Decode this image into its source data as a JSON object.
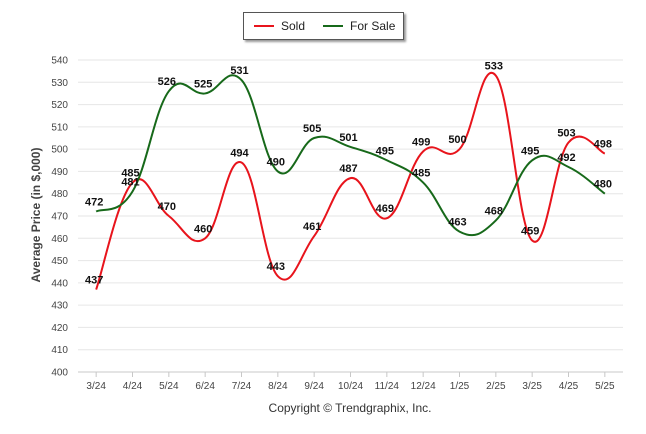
{
  "legend": {
    "sold_label": "Sold",
    "for_sale_label": "For Sale"
  },
  "copyright": "Copyright © Trendgraphix, Inc.",
  "colors": {
    "sold": "#e8141c",
    "for_sale": "#17691a",
    "grid": "#e6e6e6"
  },
  "chart_data": {
    "type": "line",
    "title": "",
    "xlabel": "",
    "ylabel": "Average Price (in $,000)",
    "categories": [
      "3/24",
      "4/24",
      "5/24",
      "6/24",
      "7/24",
      "8/24",
      "9/24",
      "10/24",
      "11/24",
      "12/24",
      "1/25",
      "2/25",
      "3/25",
      "4/25",
      "5/25"
    ],
    "ylim": [
      400,
      540
    ],
    "yticks": [
      400,
      410,
      420,
      430,
      440,
      450,
      460,
      470,
      480,
      490,
      500,
      510,
      520,
      530,
      540
    ],
    "grid": true,
    "legend_position": "top-center",
    "series": [
      {
        "name": "Sold",
        "color": "#e8141c",
        "values": [
          437,
          485,
          470,
          460,
          494,
          443,
          461,
          487,
          469,
          499,
          500,
          533,
          459,
          503,
          498
        ]
      },
      {
        "name": "For Sale",
        "color": "#17691a",
        "values": [
          472,
          481,
          526,
          525,
          531,
          490,
          505,
          501,
          495,
          485,
          463,
          468,
          495,
          492,
          480
        ]
      }
    ]
  }
}
